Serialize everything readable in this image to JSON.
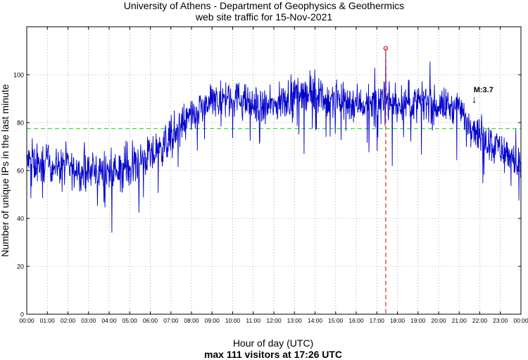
{
  "chart_data": {
    "type": "line",
    "title": "University of Athens - Department of Geophysics & Geothermics",
    "subtitle": "web site traffic for 15-Nov-2021",
    "xlabel": "Hour of day (UTC)",
    "caption": "max 111 visitors at 17:26 UTC",
    "ylabel": "Number of unique IPs in the last minute",
    "xlim": [
      0,
      24
    ],
    "ylim": [
      0,
      120
    ],
    "yticks": [
      0,
      20,
      40,
      60,
      80,
      100
    ],
    "xticks": [
      "00:00",
      "01:00",
      "02:00",
      "03:00",
      "04:00",
      "05:00",
      "06:00",
      "07:00",
      "08:00",
      "09:00",
      "10:00",
      "11:00",
      "12:00",
      "13:00",
      "14:00",
      "15:00",
      "16:00",
      "17:00",
      "18:00",
      "19:00",
      "20:00",
      "21:00",
      "22:00",
      "23:00",
      "00:00"
    ],
    "grid": true,
    "mean_line": {
      "value": 77.5,
      "color": "#33dd33"
    },
    "max_marker": {
      "hour": 17.433,
      "value": 111,
      "color": "#dd2222"
    },
    "annotation": {
      "text": "M:3.7",
      "hour": 21.7,
      "value": 88
    },
    "series": [
      {
        "color": "#0000cc",
        "x": [
          0,
          0.5,
          1,
          1.5,
          2,
          2.5,
          3,
          3.5,
          4,
          4.5,
          5,
          5.5,
          6,
          6.5,
          7,
          7.5,
          8,
          8.5,
          9,
          9.5,
          10,
          10.5,
          11,
          11.5,
          12,
          12.5,
          13,
          13.5,
          14,
          14.5,
          15,
          15.5,
          16,
          16.5,
          17,
          17.5,
          18,
          18.5,
          19,
          19.5,
          20,
          20.5,
          21,
          21.5,
          22,
          22.5,
          23,
          23.5,
          24
        ],
        "y": [
          64,
          62,
          63,
          62,
          61,
          60,
          60,
          60,
          59,
          60,
          62,
          64,
          66,
          69,
          74,
          78,
          82,
          86,
          88,
          90,
          91,
          89,
          87,
          86,
          87,
          89,
          92,
          93,
          92,
          90,
          90,
          89,
          88,
          88,
          88,
          89,
          88,
          88,
          88,
          88,
          87,
          87,
          85,
          80,
          76,
          72,
          69,
          66,
          61
        ]
      }
    ]
  }
}
